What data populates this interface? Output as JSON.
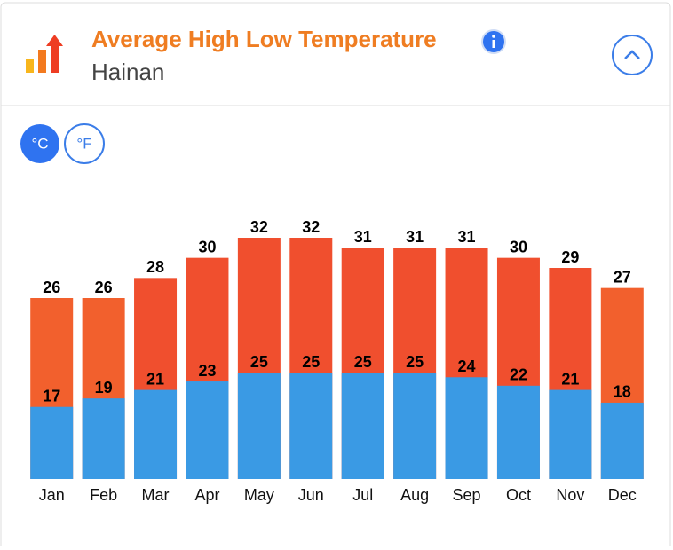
{
  "chart_data": {
    "type": "bar",
    "overlay": true,
    "title": "Average High Low Temperature",
    "subtitle": "Hainan",
    "unit_buttons": [
      "°C",
      "°F"
    ],
    "categories": [
      "Jan",
      "Feb",
      "Mar",
      "Apr",
      "May",
      "Jun",
      "Jul",
      "Aug",
      "Sep",
      "Oct",
      "Nov",
      "Dec"
    ],
    "ylim": [
      8,
      35
    ],
    "y2lim": [
      0,
      64
    ],
    "series": [
      {
        "name": "High",
        "colors": [
          "#f2602d",
          "#f2602d",
          "#f04f2e",
          "#f04f2e",
          "#f04f2e",
          "#f04f2e",
          "#f04f2e",
          "#f04f2e",
          "#f04f2e",
          "#f04f2e",
          "#f04f2e",
          "#f2602d"
        ],
        "values": [
          26,
          26,
          28,
          30,
          32,
          32,
          31,
          31,
          31,
          30,
          29,
          27
        ]
      },
      {
        "name": "Low",
        "color": "#3a9ae4",
        "axis": "y2",
        "values": [
          17,
          19,
          21,
          23,
          25,
          25,
          25,
          25,
          24,
          22,
          21,
          18
        ]
      }
    ]
  }
}
